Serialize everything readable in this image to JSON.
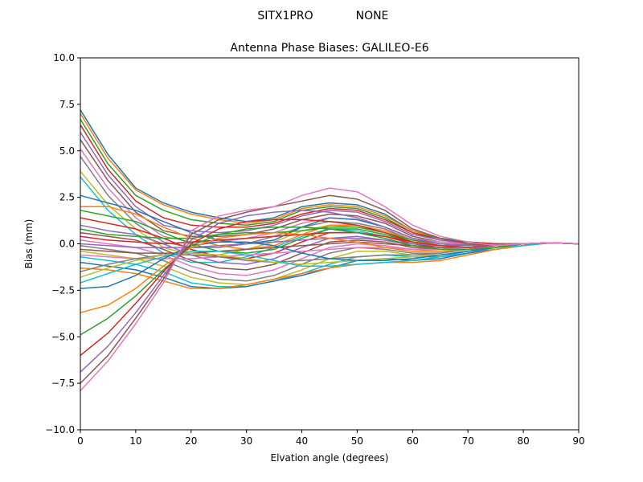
{
  "figure": {
    "suptitle_left": "SITX1PRO",
    "suptitle_right": "NONE"
  },
  "chart_data": {
    "type": "line",
    "title": "Antenna Phase Biases: GALILEO-E6",
    "xlabel": "Elvation angle (degrees)",
    "ylabel": "Bias (mm)",
    "xlim": [
      0,
      90
    ],
    "ylim": [
      -10,
      10
    ],
    "xticks": [
      0,
      10,
      20,
      30,
      40,
      50,
      60,
      70,
      80,
      90
    ],
    "yticks": [
      -10.0,
      -7.5,
      -5.0,
      -2.5,
      0.0,
      2.5,
      5.0,
      7.5,
      10.0
    ],
    "xtick_labels": [
      "0",
      "10",
      "20",
      "30",
      "40",
      "50",
      "60",
      "70",
      "80",
      "90"
    ],
    "ytick_labels": [
      "−10.0",
      "−7.5",
      "−5.0",
      "−2.5",
      "0.0",
      "2.5",
      "5.0",
      "7.5",
      "10.0"
    ],
    "grid": false,
    "legend": "none",
    "x": [
      0,
      5,
      10,
      15,
      20,
      25,
      30,
      35,
      40,
      45,
      50,
      55,
      60,
      65,
      70,
      75,
      80,
      85,
      90
    ],
    "colors": [
      "#1f77b4",
      "#ff7f0e",
      "#2ca02c",
      "#d62728",
      "#9467bd",
      "#8c564b",
      "#e377c2",
      "#7f7f7f",
      "#bcbd22",
      "#17becf"
    ],
    "series": [
      {
        "values": [
          7.2,
          4.8,
          3.0,
          2.2,
          1.7,
          1.4,
          1.2,
          1.4,
          2.0,
          2.2,
          2.1,
          1.6,
          0.7,
          0.3,
          0.1,
          0.0,
          0.0,
          0.05,
          0.0
        ]
      },
      {
        "values": [
          7.0,
          4.6,
          2.9,
          2.1,
          1.6,
          1.3,
          1.1,
          1.3,
          1.9,
          2.1,
          2.0,
          1.5,
          0.7,
          0.3,
          0.1,
          0.0,
          0.0,
          0.05,
          0.0
        ]
      },
      {
        "values": [
          6.7,
          4.3,
          2.6,
          1.8,
          1.3,
          1.1,
          1.0,
          1.2,
          1.8,
          2.0,
          1.9,
          1.4,
          0.6,
          0.3,
          0.1,
          0.0,
          0.0,
          0.05,
          0.0
        ]
      },
      {
        "values": [
          6.4,
          4.0,
          2.3,
          1.4,
          1.0,
          0.9,
          0.9,
          1.1,
          1.6,
          1.9,
          1.8,
          1.3,
          0.6,
          0.2,
          0.1,
          0.0,
          0.0,
          0.05,
          0.0
        ]
      },
      {
        "values": [
          6.0,
          3.7,
          2.0,
          1.0,
          0.7,
          0.6,
          0.7,
          1.0,
          1.5,
          1.8,
          1.7,
          1.2,
          0.5,
          0.2,
          0.0,
          -0.05,
          0.0,
          0.05,
          0.0
        ]
      },
      {
        "values": [
          5.6,
          3.4,
          1.7,
          0.7,
          0.4,
          0.4,
          0.5,
          0.8,
          1.3,
          1.6,
          1.5,
          1.1,
          0.4,
          0.1,
          0.0,
          -0.05,
          0.0,
          0.05,
          0.0
        ]
      },
      {
        "values": [
          5.1,
          3.0,
          1.4,
          0.4,
          0.1,
          0.1,
          0.3,
          0.6,
          1.1,
          1.4,
          1.3,
          0.9,
          0.3,
          0.1,
          0.0,
          -0.05,
          0.0,
          0.05,
          0.0
        ]
      },
      {
        "values": [
          4.7,
          2.6,
          1.1,
          0.1,
          -0.2,
          -0.2,
          0.0,
          0.4,
          0.9,
          1.2,
          1.1,
          0.8,
          0.2,
          0.0,
          -0.05,
          -0.1,
          0.0,
          0.05,
          0.0
        ]
      },
      {
        "values": [
          3.9,
          2.1,
          0.8,
          -0.2,
          -0.6,
          -0.6,
          -0.3,
          0.1,
          0.7,
          1.0,
          0.9,
          0.6,
          0.1,
          -0.1,
          -0.1,
          -0.1,
          0.0,
          0.05,
          0.0
        ]
      },
      {
        "values": [
          3.6,
          1.8,
          0.5,
          -0.5,
          -1.0,
          -1.0,
          -0.7,
          -0.2,
          0.4,
          0.8,
          0.7,
          0.4,
          0.0,
          -0.1,
          -0.1,
          -0.1,
          0.0,
          0.05,
          0.0
        ]
      },
      {
        "values": [
          2.6,
          2.2,
          1.8,
          1.2,
          0.6,
          0.2,
          0.0,
          0.2,
          0.9,
          1.4,
          1.3,
          0.9,
          0.3,
          0.0,
          -0.1,
          -0.1,
          0.0,
          0.05,
          0.0
        ]
      },
      {
        "values": [
          2.0,
          2.0,
          1.6,
          0.9,
          0.3,
          -0.1,
          -0.3,
          -0.1,
          0.5,
          1.0,
          1.0,
          0.7,
          0.2,
          -0.1,
          -0.1,
          -0.1,
          0.0,
          0.05,
          0.0
        ]
      },
      {
        "values": [
          1.8,
          1.5,
          1.2,
          0.6,
          0.0,
          -0.4,
          -0.5,
          -0.3,
          0.3,
          0.8,
          0.8,
          0.5,
          0.1,
          -0.1,
          -0.1,
          -0.1,
          0.0,
          0.05,
          0.0
        ]
      },
      {
        "values": [
          1.4,
          1.1,
          0.8,
          0.3,
          -0.3,
          -0.7,
          -0.8,
          -0.5,
          0.1,
          0.6,
          0.6,
          0.4,
          0.0,
          -0.2,
          -0.2,
          -0.1,
          0.0,
          0.05,
          0.0
        ]
      },
      {
        "values": [
          1.0,
          0.7,
          0.5,
          0.0,
          -0.6,
          -1.0,
          -1.1,
          -0.8,
          -0.2,
          0.3,
          0.4,
          0.2,
          -0.1,
          -0.2,
          -0.2,
          -0.1,
          0.0,
          0.05,
          0.0
        ]
      },
      {
        "values": [
          0.6,
          0.4,
          0.2,
          -0.3,
          -0.9,
          -1.3,
          -1.4,
          -1.1,
          -0.5,
          0.1,
          0.2,
          0.1,
          -0.2,
          -0.3,
          -0.2,
          -0.1,
          0.0,
          0.05,
          0.0
        ]
      },
      {
        "values": [
          0.2,
          0.0,
          -0.2,
          -0.6,
          -1.2,
          -1.6,
          -1.7,
          -1.4,
          -0.8,
          -0.2,
          0.0,
          -0.1,
          -0.3,
          -0.4,
          -0.3,
          -0.1,
          0.0,
          0.05,
          0.0
        ]
      },
      {
        "values": [
          -0.1,
          -0.3,
          -0.5,
          -0.9,
          -1.5,
          -1.9,
          -2.0,
          -1.7,
          -1.1,
          -0.5,
          -0.2,
          -0.3,
          -0.5,
          -0.5,
          -0.3,
          -0.2,
          0.0,
          0.05,
          0.0
        ]
      },
      {
        "values": [
          -0.4,
          -0.6,
          -0.8,
          -1.2,
          -1.8,
          -2.1,
          -2.2,
          -1.9,
          -1.4,
          -0.8,
          -0.4,
          -0.4,
          -0.6,
          -0.6,
          -0.4,
          -0.2,
          0.0,
          0.05,
          0.0
        ]
      },
      {
        "values": [
          -0.7,
          -0.9,
          -1.1,
          -1.5,
          -2.1,
          -2.3,
          -2.3,
          -2.0,
          -1.6,
          -1.1,
          -0.7,
          -0.6,
          -0.7,
          -0.7,
          -0.5,
          -0.2,
          0.0,
          0.05,
          0.0
        ]
      },
      {
        "values": [
          -1.0,
          -1.2,
          -1.4,
          -1.8,
          -2.3,
          -2.4,
          -2.3,
          -2.0,
          -1.7,
          -1.3,
          -0.9,
          -0.8,
          -0.9,
          -0.8,
          -0.5,
          -0.3,
          -0.1,
          0.05,
          0.0
        ]
      },
      {
        "values": [
          -1.3,
          -1.4,
          -1.6,
          -2.0,
          -2.4,
          -2.4,
          -2.2,
          -1.9,
          -1.6,
          -1.3,
          -1.1,
          -1.0,
          -1.0,
          -0.9,
          -0.6,
          -0.3,
          -0.1,
          0.05,
          0.0
        ]
      },
      {
        "values": [
          0.8,
          0.5,
          0.4,
          0.3,
          0.3,
          0.5,
          0.6,
          0.6,
          0.7,
          0.9,
          0.9,
          0.6,
          0.2,
          0.0,
          -0.1,
          -0.1,
          0.0,
          0.05,
          0.0
        ]
      },
      {
        "values": [
          0.4,
          0.2,
          0.1,
          0.0,
          0.1,
          0.2,
          0.3,
          0.4,
          0.5,
          0.6,
          0.6,
          0.4,
          0.1,
          -0.1,
          -0.1,
          -0.1,
          0.0,
          0.05,
          0.0
        ]
      },
      {
        "values": [
          0.0,
          -0.1,
          -0.2,
          -0.2,
          -0.2,
          -0.1,
          0.0,
          0.1,
          0.2,
          0.3,
          0.3,
          0.2,
          0.0,
          -0.1,
          -0.1,
          -0.1,
          0.0,
          0.05,
          0.0
        ]
      },
      {
        "values": [
          -0.3,
          -0.4,
          -0.5,
          -0.5,
          -0.5,
          -0.4,
          -0.3,
          -0.2,
          -0.1,
          0.0,
          0.1,
          0.0,
          -0.1,
          -0.2,
          -0.2,
          -0.1,
          0.0,
          0.05,
          0.0
        ]
      },
      {
        "values": [
          -0.6,
          -0.7,
          -0.8,
          -0.8,
          -0.8,
          -0.7,
          -0.6,
          -0.5,
          -0.4,
          -0.3,
          -0.2,
          -0.2,
          -0.3,
          -0.3,
          -0.2,
          -0.1,
          0.0,
          0.05,
          0.0
        ]
      },
      {
        "values": [
          -1.5,
          -1.1,
          -0.8,
          -0.6,
          -0.6,
          -0.7,
          -0.9,
          -1.0,
          -0.9,
          -0.8,
          -0.7,
          -0.6,
          -0.6,
          -0.5,
          -0.3,
          -0.2,
          0.0,
          0.05,
          0.0
        ]
      },
      {
        "values": [
          -1.8,
          -1.3,
          -0.9,
          -0.6,
          -0.5,
          -0.6,
          -0.8,
          -1.0,
          -1.1,
          -1.0,
          -0.9,
          -0.8,
          -0.7,
          -0.6,
          -0.4,
          -0.2,
          0.0,
          0.05,
          0.0
        ]
      },
      {
        "values": [
          -2.1,
          -1.6,
          -1.1,
          -0.7,
          -0.4,
          -0.4,
          -0.6,
          -0.9,
          -1.2,
          -1.2,
          -1.1,
          -1.0,
          -0.9,
          -0.7,
          -0.4,
          -0.2,
          -0.1,
          0.05,
          0.0
        ]
      },
      {
        "values": [
          -2.4,
          -2.3,
          -1.7,
          -0.8,
          -0.1,
          0.1,
          0.1,
          -0.1,
          -0.5,
          -0.8,
          -0.9,
          -0.9,
          -0.8,
          -0.6,
          -0.4,
          -0.2,
          0.0,
          0.05,
          0.0
        ]
      },
      {
        "values": [
          -3.7,
          -3.3,
          -2.4,
          -1.2,
          -0.2,
          0.3,
          0.5,
          0.6,
          0.5,
          0.3,
          0.1,
          -0.2,
          -0.4,
          -0.4,
          -0.3,
          -0.2,
          0.0,
          0.05,
          0.0
        ]
      },
      {
        "values": [
          -4.9,
          -4.0,
          -2.8,
          -1.4,
          -0.1,
          0.5,
          0.8,
          0.9,
          0.9,
          0.8,
          0.6,
          0.3,
          -0.1,
          -0.3,
          -0.3,
          -0.2,
          0.0,
          0.05,
          0.0
        ]
      },
      {
        "values": [
          -6.0,
          -4.8,
          -3.2,
          -1.5,
          0.0,
          0.8,
          1.2,
          1.3,
          1.3,
          1.2,
          1.0,
          0.6,
          0.1,
          -0.1,
          -0.2,
          -0.1,
          0.0,
          0.05,
          0.0
        ]
      },
      {
        "values": [
          -6.9,
          -5.5,
          -3.7,
          -1.7,
          0.2,
          1.1,
          1.5,
          1.7,
          1.8,
          1.7,
          1.4,
          0.9,
          0.3,
          0.0,
          -0.1,
          -0.1,
          0.0,
          0.05,
          0.0
        ]
      },
      {
        "values": [
          -7.5,
          -6.0,
          -4.0,
          -1.9,
          0.5,
          1.3,
          1.7,
          2.0,
          2.3,
          2.6,
          2.4,
          1.8,
          0.8,
          0.3,
          0.0,
          -0.1,
          0.0,
          0.05,
          0.0
        ]
      },
      {
        "values": [
          -7.9,
          -6.3,
          -4.3,
          -2.1,
          0.7,
          1.5,
          1.8,
          2.0,
          2.6,
          3.0,
          2.8,
          2.0,
          1.0,
          0.4,
          0.1,
          -0.1,
          0.0,
          0.05,
          0.0
        ]
      }
    ]
  }
}
